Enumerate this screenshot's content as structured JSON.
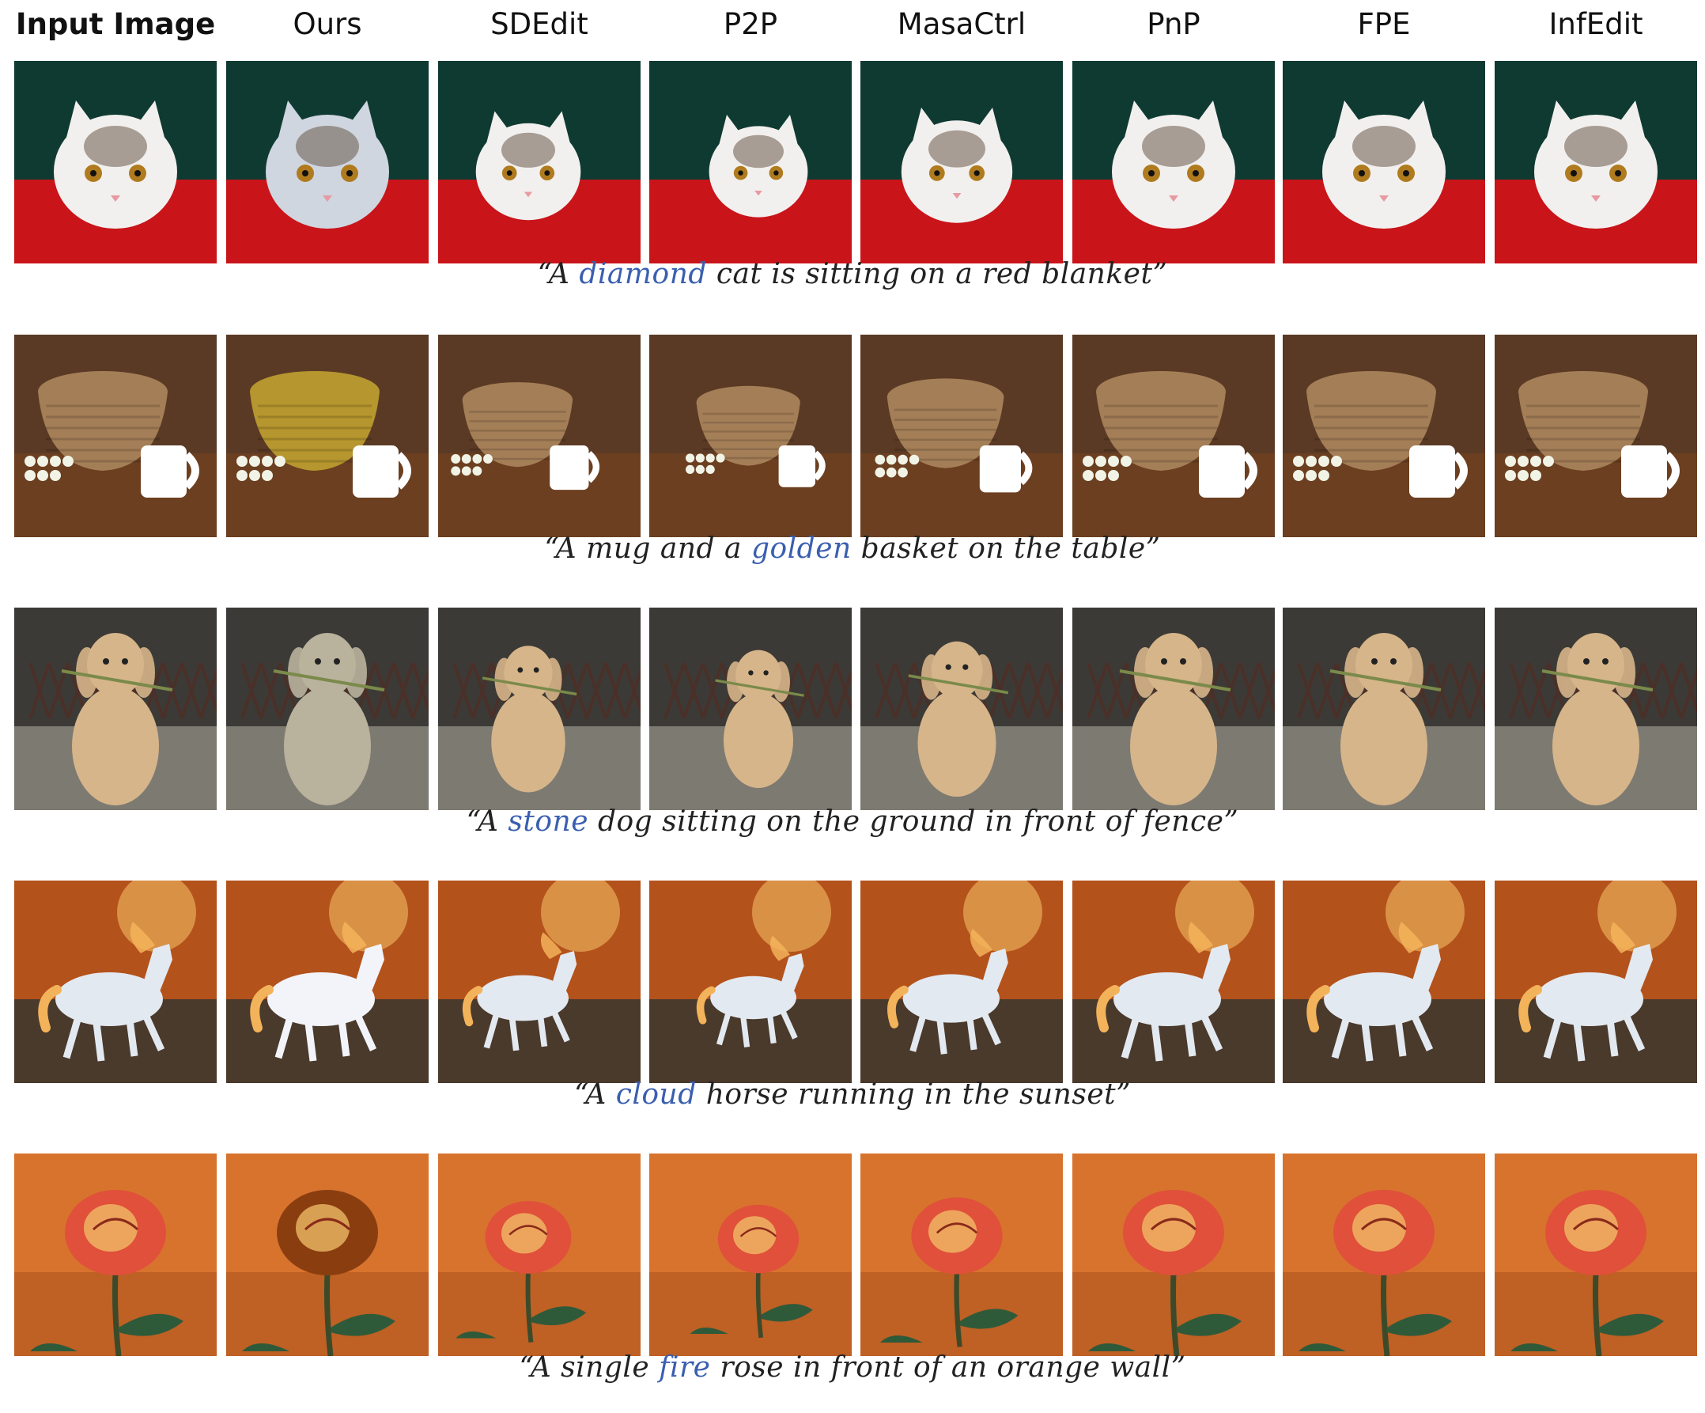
{
  "columns": [
    "Input Image",
    "Ours",
    "SDEdit",
    "P2P",
    "MasaCtrl",
    "PnP",
    "FPE",
    "InfEdit"
  ],
  "rows": [
    {
      "subject": "cat",
      "caption": {
        "pre": "“A ",
        "highlight": "diamond",
        "post": " cat is sitting on a red blanket”"
      },
      "palette": {
        "bg": "#0f3a32",
        "base": "#c9141a",
        "main": "#f2f0ee",
        "accent": "#6a5a4a"
      },
      "edited_main": "#cfd6df"
    },
    {
      "subject": "basket",
      "caption": {
        "pre": "“A mug and a ",
        "highlight": "golden",
        "post": " basket on the table”"
      },
      "palette": {
        "bg": "#5a3a24",
        "base": "#6b3f20",
        "main": "#a47e57",
        "accent": "#ffffff"
      },
      "edited_main": "#b6962e"
    },
    {
      "subject": "dog",
      "caption": {
        "pre": "“A ",
        "highlight": "stone",
        "post": " dog sitting on the ground in front of fence”"
      },
      "palette": {
        "bg": "#3c3a36",
        "base": "#7d7a72",
        "main": "#d6b58a",
        "accent": "#4a3a30"
      },
      "edited_main": "#b9b29c"
    },
    {
      "subject": "horse",
      "caption": {
        "pre": "“A ",
        "highlight": "cloud",
        "post": " horse running in the sunset”"
      },
      "palette": {
        "bg": "#b4521c",
        "base": "#4a3a2c",
        "main": "#e3e9f0",
        "accent": "#f3b35a"
      },
      "edited_main": "#f2f4fa"
    },
    {
      "subject": "rose",
      "caption": {
        "pre": "“A single ",
        "highlight": "fire",
        "post": " rose in front of an orange wall”"
      },
      "palette": {
        "bg": "#d8732e",
        "base": "#bf6024",
        "main": "#e0503a",
        "accent": "#2f5a3a"
      },
      "edited_main": "#8a3e10"
    }
  ]
}
